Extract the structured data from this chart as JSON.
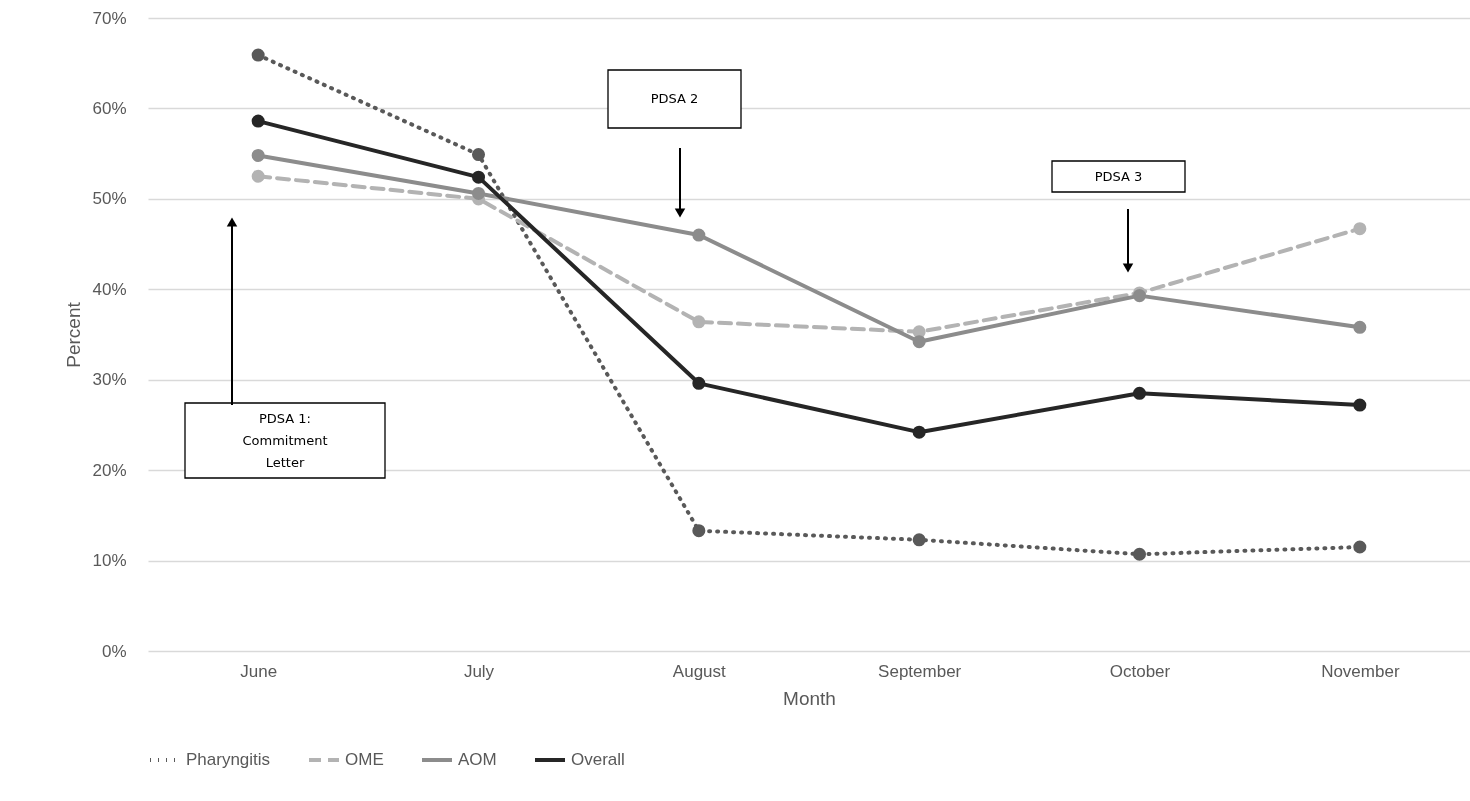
{
  "chart_data": {
    "type": "line",
    "xlabel": "Month",
    "ylabel": "Percent",
    "categories": [
      "June",
      "July",
      "August",
      "September",
      "October",
      "November"
    ],
    "series": [
      {
        "name": "Pharyngitis",
        "color": "#595959",
        "line_style": "dotted",
        "values": [
          65.9,
          54.9,
          13.3,
          12.3,
          10.7,
          11.5
        ]
      },
      {
        "name": "OME",
        "color": "#b3b3b3",
        "line_style": "dashed",
        "values": [
          52.5,
          50.0,
          36.4,
          35.3,
          39.6,
          46.7
        ]
      },
      {
        "name": "AOM",
        "color": "#8c8c8c",
        "line_style": "solid",
        "values": [
          54.8,
          50.6,
          46.0,
          34.2,
          39.3,
          35.8
        ]
      },
      {
        "name": "Overall",
        "color": "#262626",
        "line_style": "solid",
        "values": [
          58.6,
          52.4,
          29.6,
          24.2,
          28.5,
          27.2
        ]
      }
    ],
    "ylim": [
      0,
      70
    ],
    "yticks": [
      {
        "value": 0,
        "label": "0%"
      },
      {
        "value": 10,
        "label": "10%"
      },
      {
        "value": 20,
        "label": "20%"
      },
      {
        "value": 30,
        "label": "30%"
      },
      {
        "value": 40,
        "label": "40%"
      },
      {
        "value": 50,
        "label": "50%"
      },
      {
        "value": 60,
        "label": "60%"
      },
      {
        "value": 70,
        "label": "70%"
      }
    ],
    "grid": "y",
    "legend": "bottom",
    "marker": "circle",
    "annotations": [
      "PDSA 1: Commitment Letter",
      "PDSA 2",
      "PDSA 3"
    ]
  }
}
